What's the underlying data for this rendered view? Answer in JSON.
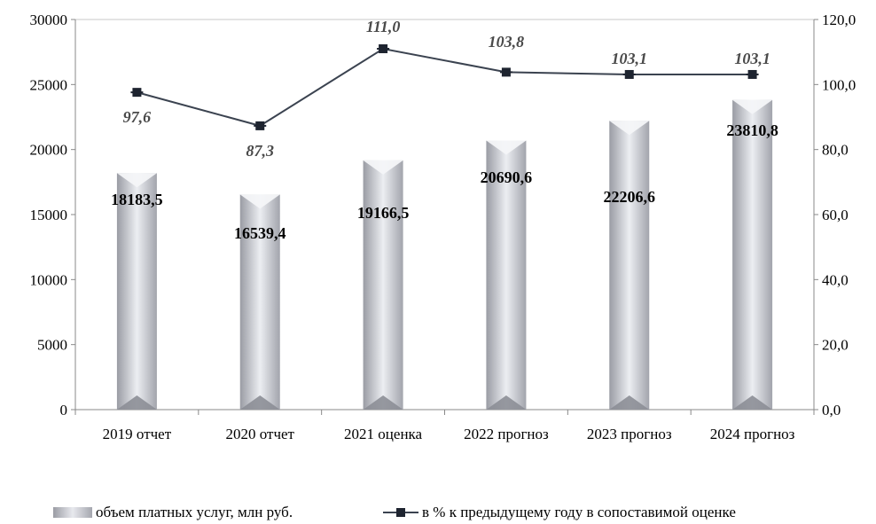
{
  "chart_data": {
    "type": "bar",
    "categories": [
      "2019 отчет",
      "2020 отчет",
      "2021 оценка",
      "2022 прогноз",
      "2023 прогноз",
      "2024 прогноз"
    ],
    "series": [
      {
        "name": "объем платных услуг, млн руб.",
        "type": "bar",
        "axis": "left",
        "values": [
          18183.5,
          16539.4,
          19166.5,
          20690.6,
          22206.6,
          23810.8
        ],
        "labels": [
          "18183,5",
          "16539,4",
          "19166,5",
          "20690,6",
          "22206,6",
          "23810,8"
        ]
      },
      {
        "name": "в % к предыдущему году в сопоставимой оценке",
        "type": "line",
        "axis": "right",
        "values": [
          97.6,
          87.3,
          111.0,
          103.8,
          103.1,
          103.1
        ],
        "labels": [
          "97,6",
          "87,3",
          "111,0",
          "103,8",
          "103,1",
          "103,1"
        ]
      }
    ],
    "ylim_left": [
      0,
      30000
    ],
    "yticks_left": [
      "0",
      "5000",
      "10000",
      "15000",
      "20000",
      "25000",
      "30000"
    ],
    "ylim_right": [
      0,
      120
    ],
    "yticks_right": [
      "0,0",
      "20,0",
      "40,0",
      "60,0",
      "80,0",
      "100,0",
      "120,0"
    ],
    "grid": false,
    "legend_position": "bottom",
    "colors": {
      "line": "#3b4350",
      "marker": "#1e2430",
      "bar_dark": "#9a9ca4",
      "bar_light": "#eceef2",
      "axis": "#888888"
    }
  },
  "legend": {
    "bar_label": "объем платных услуг, млн руб.",
    "line_label": "в % к предыдущему году в сопоставимой оценке"
  }
}
